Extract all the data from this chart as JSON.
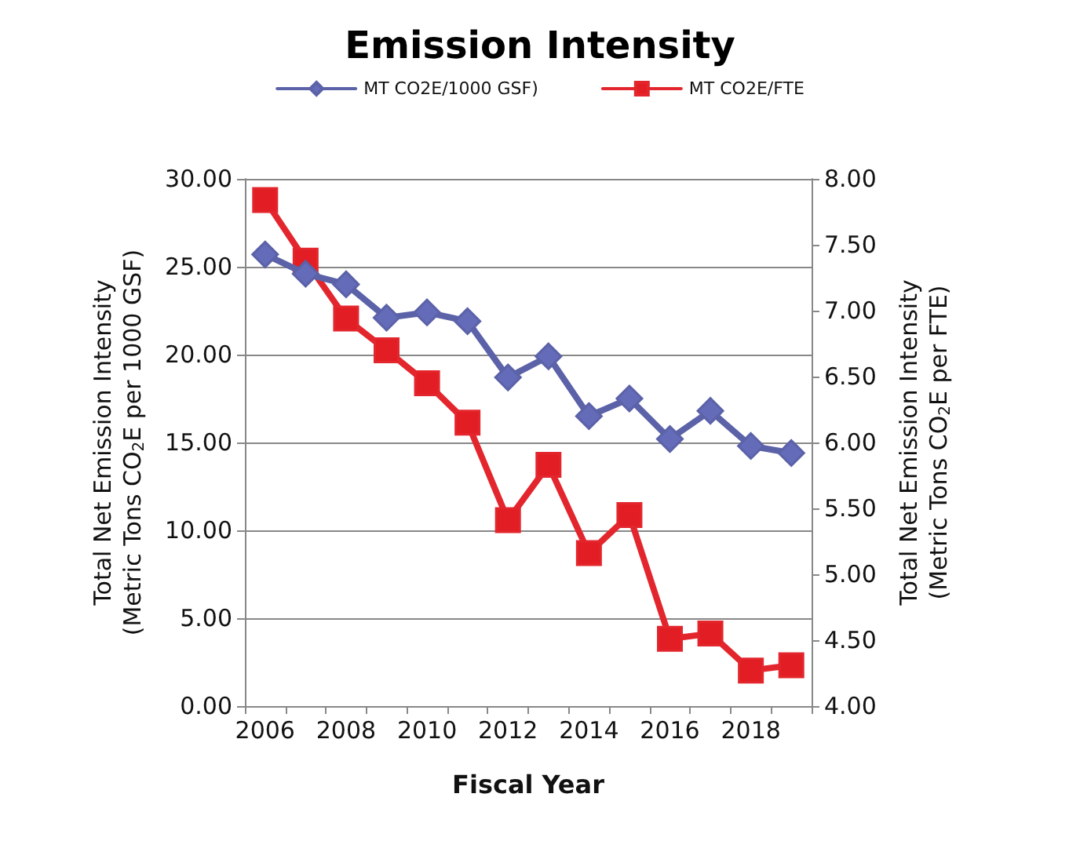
{
  "chart_data": {
    "type": "line",
    "title": "Emission Intensity",
    "xlabel": "Fiscal Year",
    "ylabel": "Total Net Emission Intensity\n(Metric Tons CO$_{2}$E per 1000 GSF)",
    "y2label": "Total Net Emission Intensity\n(Metric Tons CO$_{2}$E per FTE)",
    "categories": [
      "2006",
      null,
      "2008",
      null,
      "2010",
      null,
      "2012",
      null,
      "2014",
      null,
      "2016",
      null,
      "2018",
      null
    ],
    "series": [
      {
        "name": "MT CO2E/1000 GSF)",
        "color": "#5b62a8",
        "marker": "diamond",
        "values": [
          25.7,
          24.6,
          24.0,
          22.1,
          22.4,
          21.9,
          18.7,
          19.9,
          16.5,
          17.5,
          15.2,
          16.8,
          14.8,
          14.4
        ]
      },
      {
        "name": "MT CO2E/FTE",
        "color": "#e3262d",
        "marker": "square",
        "axis": "y2",
        "values": [
          7.84,
          7.38,
          6.94,
          6.7,
          6.45,
          6.15,
          5.41,
          5.83,
          5.16,
          5.45,
          4.51,
          4.55,
          4.27,
          4.31
        ]
      }
    ],
    "ylim": [
      0,
      30
    ],
    "yticks": [
      {
        "value": 0,
        "label": "0.00"
      },
      {
        "value": 5,
        "label": "5.00"
      },
      {
        "value": 10,
        "label": "10.00"
      },
      {
        "value": 15,
        "label": "15.00"
      },
      {
        "value": 20,
        "label": "20.00"
      },
      {
        "value": 25,
        "label": "25.00"
      },
      {
        "value": 30,
        "label": "30.00"
      }
    ],
    "y2lim": [
      4,
      8
    ],
    "y2ticks": [
      {
        "value": 4,
        "label": "4.00"
      },
      {
        "value": 4.5,
        "label": "4.50"
      },
      {
        "value": 5,
        "label": "5.00"
      },
      {
        "value": 5.5,
        "label": "5.50"
      },
      {
        "value": 6,
        "label": "6.00"
      },
      {
        "value": 6.5,
        "label": "6.50"
      },
      {
        "value": 7,
        "label": "7.00"
      },
      {
        "value": 7.5,
        "label": "7.50"
      },
      {
        "value": 8,
        "label": "8.00"
      }
    ],
    "grid": "y",
    "legend": "top",
    "line_style": "solid"
  }
}
